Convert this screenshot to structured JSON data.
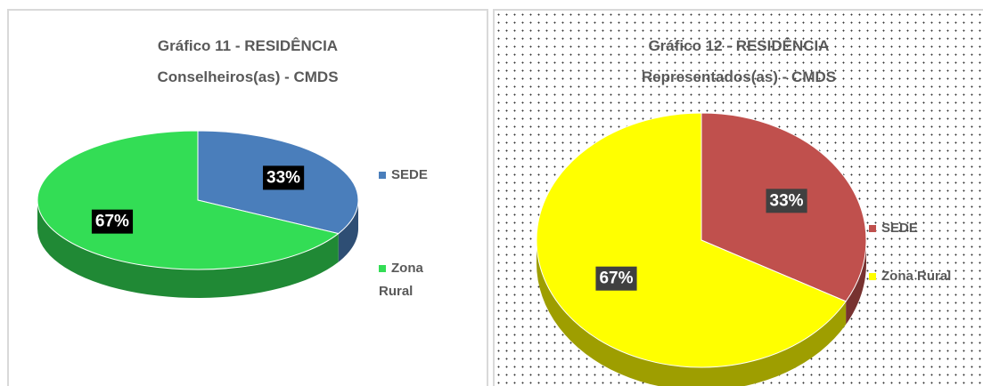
{
  "chart_data": [
    {
      "type": "pie",
      "title": [
        "Gráfico 11 - RESIDÊNCIA",
        "Conselheiros(as) - CMDS"
      ],
      "categories": [
        "SEDE",
        "Zona Rural"
      ],
      "values": [
        33,
        67
      ],
      "value_labels": [
        "33%",
        "67%"
      ],
      "colors": [
        "#4a7ebb",
        "#33dd55"
      ],
      "legend": "right"
    },
    {
      "type": "pie",
      "title": [
        "Gráfico 12 - RESIDÊNCIA",
        "Representados(as) - CMDS"
      ],
      "categories": [
        "SEDE",
        "Zona Rural"
      ],
      "values": [
        33,
        67
      ],
      "value_labels": [
        "33%",
        "67%"
      ],
      "colors": [
        "#c0504d",
        "#ffff00"
      ],
      "legend": "right"
    }
  ]
}
